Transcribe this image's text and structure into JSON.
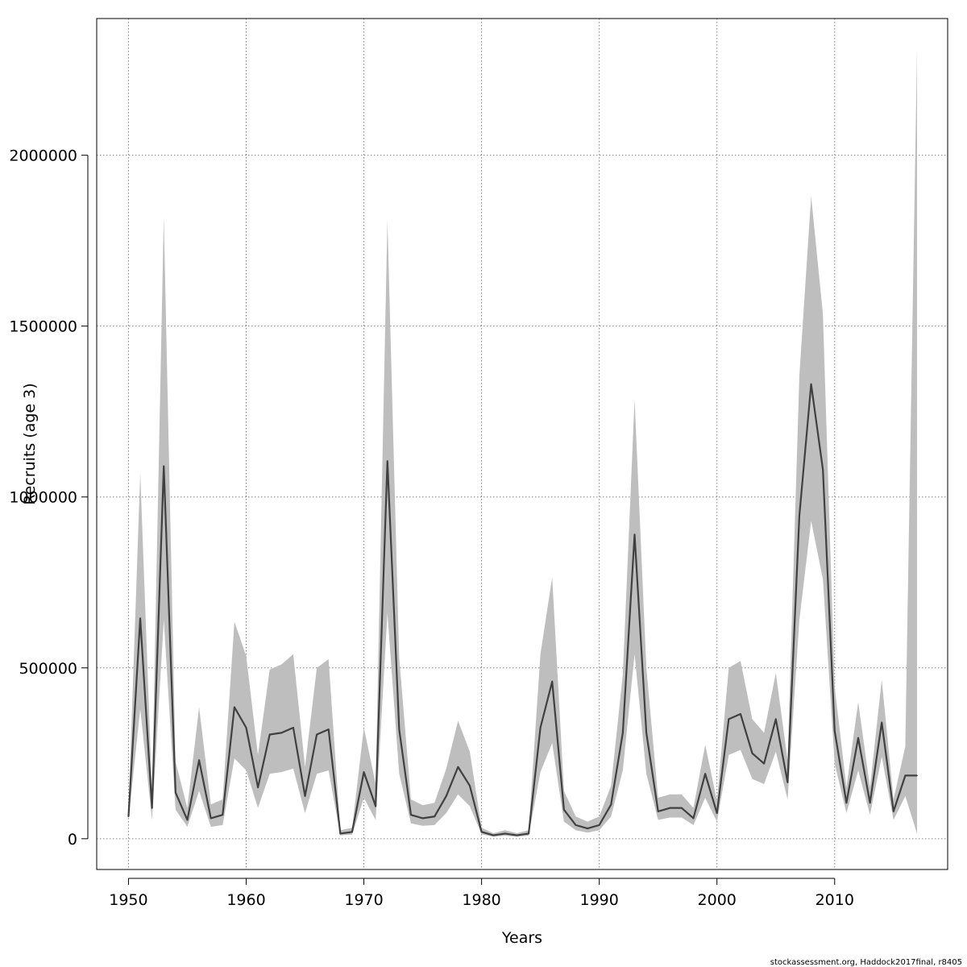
{
  "chart_data": {
    "type": "line",
    "xlabel": "Years",
    "ylabel": "Recruits (age 3)",
    "xlim": [
      1947.3,
      2019.6
    ],
    "ylim": [
      -90000,
      2400000
    ],
    "x_ticks": [
      1950,
      1960,
      1970,
      1980,
      1990,
      2000,
      2010
    ],
    "y_ticks": [
      0,
      500000,
      1000000,
      1500000,
      2000000
    ],
    "x_tick_labels": [
      "1950",
      "1960",
      "1970",
      "1980",
      "1990",
      "2000",
      "2010"
    ],
    "y_tick_labels": [
      "0",
      "500000",
      "1000000",
      "1500000",
      "2000000"
    ],
    "grid": true,
    "colors": {
      "line": "#404040",
      "band": "#bebebe",
      "grid": "#808080"
    },
    "series": [
      {
        "x": [
          1950,
          1951,
          1952,
          1953,
          1954,
          1955,
          1956,
          1957,
          1958,
          1959,
          1960,
          1961,
          1962,
          1963,
          1964,
          1965,
          1966,
          1967,
          1968,
          1969,
          1970,
          1971,
          1972,
          1973,
          1974,
          1975,
          1976,
          1977,
          1978,
          1979,
          1980,
          1981,
          1982,
          1983,
          1984,
          1985,
          1986,
          1987,
          1988,
          1989,
          1990,
          1991,
          1992,
          1993,
          1994,
          1995,
          1996,
          1997,
          1998,
          1999,
          2000,
          2001,
          2002,
          2003,
          2004,
          2005,
          2006,
          2007,
          2008,
          2009,
          2010,
          2011,
          2012,
          2013,
          2014,
          2015,
          2016,
          2017
        ],
        "values": [
          65000,
          645000,
          90000,
          1090000,
          135000,
          55000,
          230000,
          60000,
          70000,
          385000,
          325000,
          150000,
          305000,
          310000,
          325000,
          125000,
          305000,
          320000,
          15000,
          20000,
          195000,
          95000,
          1105000,
          320000,
          70000,
          60000,
          65000,
          125000,
          210000,
          155000,
          20000,
          10000,
          15000,
          10000,
          15000,
          325000,
          460000,
          85000,
          40000,
          30000,
          40000,
          100000,
          310000,
          890000,
          310000,
          80000,
          90000,
          90000,
          60000,
          190000,
          75000,
          350000,
          365000,
          250000,
          220000,
          350000,
          165000,
          945000,
          1330000,
          1080000,
          315000,
          105000,
          295000,
          105000,
          340000,
          80000,
          185000,
          185000
        ],
        "lower": [
          55000,
          380000,
          55000,
          640000,
          85000,
          35000,
          140000,
          35000,
          40000,
          235000,
          200000,
          90000,
          190000,
          195000,
          205000,
          75000,
          190000,
          200000,
          10000,
          12000,
          120000,
          55000,
          660000,
          190000,
          45000,
          38000,
          40000,
          75000,
          130000,
          95000,
          13000,
          6000,
          9000,
          6000,
          9000,
          195000,
          280000,
          50000,
          25000,
          18000,
          25000,
          65000,
          200000,
          540000,
          190000,
          55000,
          62000,
          62000,
          40000,
          120000,
          50000,
          245000,
          260000,
          175000,
          160000,
          255000,
          115000,
          640000,
          930000,
          760000,
          220000,
          75000,
          200000,
          70000,
          240000,
          55000,
          125000,
          15000
        ],
        "upper": [
          80000,
          1070000,
          140000,
          1820000,
          225000,
          90000,
          385000,
          100000,
          115000,
          635000,
          535000,
          245000,
          495000,
          510000,
          540000,
          210000,
          500000,
          525000,
          25000,
          32000,
          325000,
          160000,
          1810000,
          530000,
          115000,
          98000,
          105000,
          205000,
          345000,
          255000,
          32000,
          16000,
          25000,
          16000,
          25000,
          540000,
          765000,
          140000,
          65000,
          50000,
          65000,
          155000,
          480000,
          1285000,
          500000,
          120000,
          130000,
          130000,
          90000,
          275000,
          110000,
          500000,
          520000,
          350000,
          310000,
          485000,
          230000,
          1355000,
          1880000,
          1535000,
          445000,
          150000,
          400000,
          150000,
          465000,
          115000,
          270000,
          2310000
        ]
      }
    ]
  },
  "footnote": "stockassessment.org, Haddock2017final, r8405"
}
